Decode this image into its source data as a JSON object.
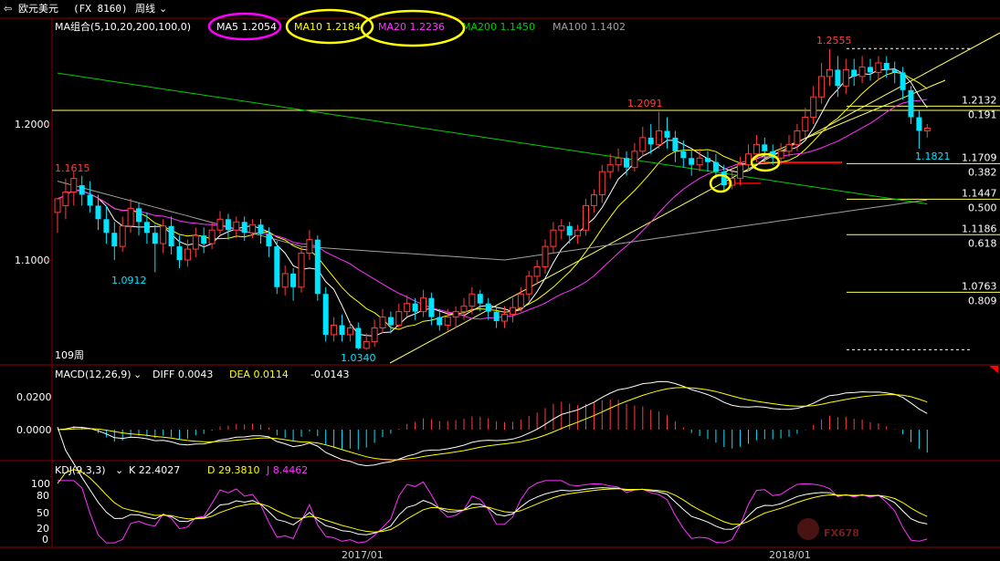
{
  "header": {
    "symbol_label": "欧元美元",
    "symbol_code": "(FX 8160)",
    "period_label": "周线",
    "ma_group_label": "MA组合(5,10,20,200,100,0)",
    "ma5_label": "MA5 1.2054",
    "ma10_label": "MA10 1.2184",
    "ma20_label": "MA20 1.2236",
    "ma200_label": "MA200 1.1450",
    "ma100_label": "MA100 1.1402"
  },
  "colors": {
    "up": "#ff3c3c",
    "down": "#00e5ff",
    "ma5": "#ffffff",
    "ma10": "#ffff00",
    "ma20": "#ff33ff",
    "ma200": "#00cc00",
    "ma100": "#a0a0a0",
    "fib": "#ffff66",
    "grid_red": "#8b0000",
    "annot_yellow": "#ffff00",
    "annot_magenta": "#ff00ff"
  },
  "price_panel": {
    "y_ticks": [
      "1.2000",
      "1.1000"
    ],
    "high_label": "1.2555",
    "peak2_label": "1.2091",
    "peak1_label": "1.1615",
    "low1_label": "1.0912",
    "low2_label": "1.0340",
    "last_low_label": "1.1821",
    "weeks_label": "109周",
    "fib_levels": [
      {
        "price": "1.2132",
        "ratio": "0.191"
      },
      {
        "price": "1.1709",
        "ratio": "0.382"
      },
      {
        "price": "1.1447",
        "ratio": "0.500"
      },
      {
        "price": "1.1186",
        "ratio": "0.618"
      },
      {
        "price": "1.0763",
        "ratio": "0.809"
      }
    ]
  },
  "macd_panel": {
    "title": "MACD(12,26,9)",
    "diff_label": "DIFF 0.0043",
    "dea_label": "DEA 0.0114",
    "macd_value": "-0.0143",
    "y_ticks": [
      "0.0200",
      "0.0000"
    ]
  },
  "kdj_panel": {
    "title": "KDJ(9,3,3)",
    "k_label": "K 22.4027",
    "d_label": "D 29.3810",
    "j_label": "J 8.4462",
    "y_ticks": [
      "100",
      "80",
      "50",
      "20",
      "0"
    ]
  },
  "x_axis": {
    "labels": [
      "2017/01",
      "2018/01"
    ]
  },
  "watermark": "FX678",
  "chart_data": {
    "type": "candlestick",
    "title": "欧元美元 周线",
    "yrange": [
      1.02,
      1.27
    ],
    "candles": [
      [
        1.135,
        1.145,
        1.125,
        1.12
      ],
      [
        1.14,
        1.15,
        1.16,
        1.13
      ],
      [
        1.15,
        1.16,
        1.165,
        1.14
      ],
      [
        1.155,
        1.148,
        1.162,
        1.14
      ],
      [
        1.148,
        1.14,
        1.158,
        1.135
      ],
      [
        1.14,
        1.13,
        1.148,
        1.122
      ],
      [
        1.13,
        1.12,
        1.14,
        1.112
      ],
      [
        1.12,
        1.11,
        1.128,
        1.1
      ],
      [
        1.11,
        1.125,
        1.132,
        1.106
      ],
      [
        1.125,
        1.138,
        1.145,
        1.12
      ],
      [
        1.138,
        1.128,
        1.142,
        1.118
      ],
      [
        1.128,
        1.12,
        1.135,
        1.112
      ],
      [
        1.12,
        1.112,
        1.126,
        1.091
      ],
      [
        1.112,
        1.125,
        1.13,
        1.105
      ],
      [
        1.125,
        1.11,
        1.132,
        1.104
      ],
      [
        1.11,
        1.1,
        1.118,
        1.094
      ],
      [
        1.1,
        1.108,
        1.115,
        1.095
      ],
      [
        1.108,
        1.118,
        1.124,
        1.102
      ],
      [
        1.118,
        1.112,
        1.124,
        1.105
      ],
      [
        1.112,
        1.122,
        1.128,
        1.108
      ],
      [
        1.122,
        1.13,
        1.136,
        1.118
      ],
      [
        1.13,
        1.122,
        1.134,
        1.115
      ],
      [
        1.122,
        1.128,
        1.132,
        1.116
      ],
      [
        1.128,
        1.12,
        1.132,
        1.114
      ],
      [
        1.12,
        1.126,
        1.13,
        1.116
      ],
      [
        1.126,
        1.119,
        1.13,
        1.112
      ],
      [
        1.119,
        1.11,
        1.124,
        1.102
      ],
      [
        1.11,
        1.08,
        1.114,
        1.075
      ],
      [
        1.08,
        1.09,
        1.096,
        1.074
      ],
      [
        1.09,
        1.08,
        1.094,
        1.07
      ],
      [
        1.08,
        1.105,
        1.11,
        1.076
      ],
      [
        1.105,
        1.115,
        1.122,
        1.1
      ],
      [
        1.115,
        1.075,
        1.118,
        1.07
      ],
      [
        1.075,
        1.045,
        1.08,
        1.04
      ],
      [
        1.045,
        1.052,
        1.058,
        1.04
      ],
      [
        1.052,
        1.045,
        1.06,
        1.04
      ],
      [
        1.045,
        1.05,
        1.055,
        1.04
      ],
      [
        1.05,
        1.035,
        1.054,
        1.034
      ],
      [
        1.035,
        1.04,
        1.046,
        1.034
      ],
      [
        1.04,
        1.05,
        1.056,
        1.036
      ],
      [
        1.05,
        1.058,
        1.064,
        1.046
      ],
      [
        1.058,
        1.052,
        1.062,
        1.046
      ],
      [
        1.052,
        1.062,
        1.068,
        1.05
      ],
      [
        1.062,
        1.068,
        1.074,
        1.058
      ],
      [
        1.068,
        1.062,
        1.072,
        1.056
      ],
      [
        1.062,
        1.072,
        1.078,
        1.058
      ],
      [
        1.072,
        1.058,
        1.076,
        1.052
      ],
      [
        1.058,
        1.052,
        1.064,
        1.048
      ],
      [
        1.052,
        1.058,
        1.064,
        1.048
      ],
      [
        1.058,
        1.062,
        1.066,
        1.05
      ],
      [
        1.062,
        1.066,
        1.072,
        1.056
      ],
      [
        1.066,
        1.075,
        1.08,
        1.06
      ],
      [
        1.075,
        1.068,
        1.078,
        1.062
      ],
      [
        1.068,
        1.062,
        1.072,
        1.056
      ],
      [
        1.062,
        1.055,
        1.066,
        1.05
      ],
      [
        1.055,
        1.06,
        1.066,
        1.05
      ],
      [
        1.06,
        1.065,
        1.072,
        1.054
      ],
      [
        1.065,
        1.075,
        1.08,
        1.062
      ],
      [
        1.075,
        1.088,
        1.092,
        1.07
      ],
      [
        1.088,
        1.095,
        1.1,
        1.082
      ],
      [
        1.095,
        1.11,
        1.115,
        1.09
      ],
      [
        1.11,
        1.122,
        1.128,
        1.105
      ],
      [
        1.122,
        1.125,
        1.13,
        1.115
      ],
      [
        1.125,
        1.118,
        1.128,
        1.112
      ],
      [
        1.118,
        1.122,
        1.126,
        1.112
      ],
      [
        1.122,
        1.14,
        1.145,
        1.118
      ],
      [
        1.14,
        1.148,
        1.152,
        1.135
      ],
      [
        1.148,
        1.165,
        1.17,
        1.142
      ],
      [
        1.165,
        1.17,
        1.178,
        1.16
      ],
      [
        1.17,
        1.175,
        1.182,
        1.165
      ],
      [
        1.175,
        1.168,
        1.18,
        1.162
      ],
      [
        1.168,
        1.18,
        1.186,
        1.165
      ],
      [
        1.18,
        1.19,
        1.198,
        1.176
      ],
      [
        1.19,
        1.185,
        1.2,
        1.178
      ],
      [
        1.185,
        1.195,
        1.209,
        1.182
      ],
      [
        1.195,
        1.19,
        1.205,
        1.182
      ],
      [
        1.19,
        1.18,
        1.195,
        1.172
      ],
      [
        1.18,
        1.175,
        1.188,
        1.168
      ],
      [
        1.175,
        1.17,
        1.182,
        1.162
      ],
      [
        1.17,
        1.175,
        1.182,
        1.165
      ],
      [
        1.175,
        1.172,
        1.18,
        1.165
      ],
      [
        1.172,
        1.165,
        1.178,
        1.16
      ],
      [
        1.165,
        1.155,
        1.17,
        1.15
      ],
      [
        1.155,
        1.16,
        1.168,
        1.152
      ],
      [
        1.16,
        1.17,
        1.176,
        1.155
      ],
      [
        1.17,
        1.178,
        1.185,
        1.165
      ],
      [
        1.178,
        1.185,
        1.192,
        1.172
      ],
      [
        1.185,
        1.18,
        1.19,
        1.172
      ],
      [
        1.18,
        1.175,
        1.185,
        1.17
      ],
      [
        1.175,
        1.18,
        1.186,
        1.17
      ],
      [
        1.18,
        1.185,
        1.192,
        1.176
      ],
      [
        1.185,
        1.195,
        1.2,
        1.18
      ],
      [
        1.195,
        1.205,
        1.212,
        1.19
      ],
      [
        1.205,
        1.22,
        1.228,
        1.2
      ],
      [
        1.22,
        1.235,
        1.245,
        1.215
      ],
      [
        1.235,
        1.24,
        1.255,
        1.228
      ],
      [
        1.24,
        1.228,
        1.25,
        1.22
      ],
      [
        1.228,
        1.24,
        1.248,
        1.222
      ],
      [
        1.24,
        1.235,
        1.248,
        1.228
      ],
      [
        1.235,
        1.242,
        1.25,
        1.23
      ],
      [
        1.242,
        1.238,
        1.248,
        1.232
      ],
      [
        1.238,
        1.245,
        1.25,
        1.232
      ],
      [
        1.245,
        1.24,
        1.25,
        1.234
      ],
      [
        1.24,
        1.238,
        1.246,
        1.23
      ],
      [
        1.238,
        1.225,
        1.242,
        1.218
      ],
      [
        1.225,
        1.205,
        1.228,
        1.2
      ],
      [
        1.205,
        1.195,
        1.21,
        1.182
      ],
      [
        1.195,
        1.197,
        1.2,
        1.19
      ]
    ],
    "fib_levels": [
      1.2555,
      1.2132,
      1.1709,
      1.1447,
      1.1186,
      1.0763,
      1.034
    ],
    "fib_ratios": [
      0,
      0.191,
      0.382,
      0.5,
      0.618,
      0.809,
      1
    ]
  }
}
